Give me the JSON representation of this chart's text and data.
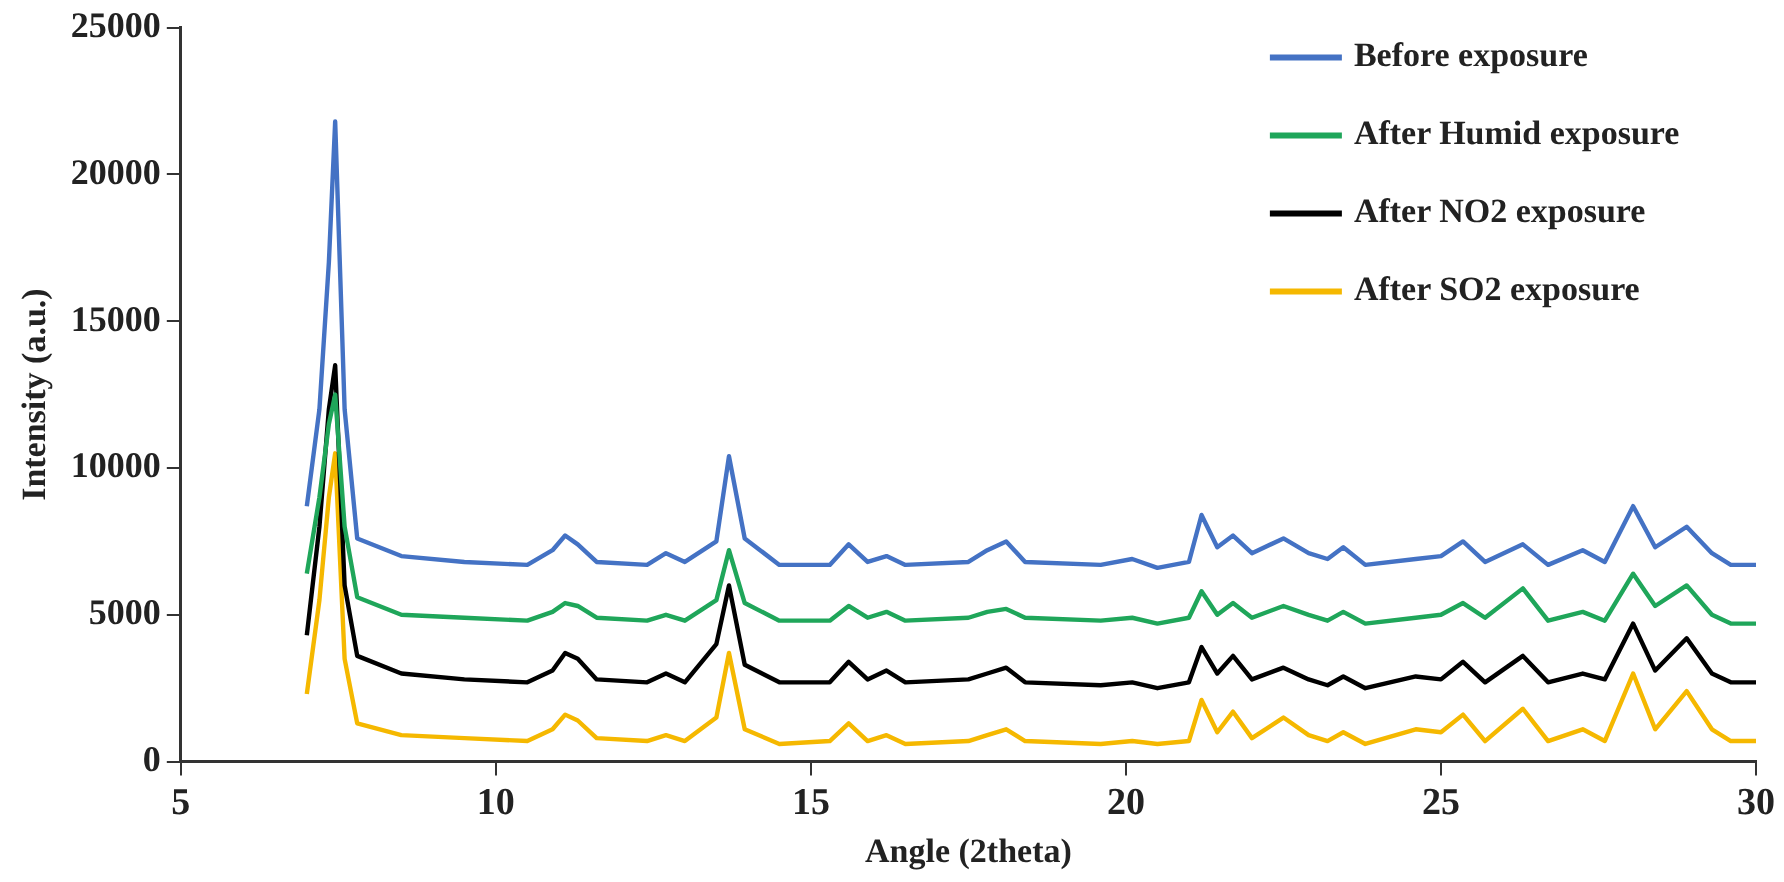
{
  "chart_data": {
    "type": "line",
    "xlabel": "Angle (2theta)",
    "ylabel": "Intensity (a.u.)",
    "x": [
      7.0,
      7.2,
      7.35,
      7.45,
      7.6,
      7.8,
      8.5,
      9.5,
      10.5,
      10.9,
      11.1,
      11.3,
      11.6,
      12.4,
      12.7,
      13.0,
      13.5,
      13.7,
      13.95,
      14.5,
      15.3,
      15.6,
      15.9,
      16.2,
      16.5,
      17.5,
      17.8,
      18.1,
      18.4,
      19.6,
      20.1,
      20.5,
      21.0,
      21.2,
      21.45,
      21.7,
      22.0,
      22.5,
      22.9,
      23.2,
      23.45,
      23.8,
      24.6,
      25.0,
      25.35,
      25.7,
      26.3,
      26.7,
      27.25,
      27.6,
      28.05,
      28.4,
      28.9,
      29.3,
      29.6,
      30.0
    ],
    "series": [
      {
        "name": "Before exposure",
        "color": "#4472c4",
        "values": [
          8700,
          12000,
          17000,
          21800,
          12000,
          7600,
          7000,
          6800,
          6700,
          7200,
          7700,
          7400,
          6800,
          6700,
          7100,
          6800,
          7500,
          10400,
          7600,
          6700,
          6700,
          7400,
          6800,
          7000,
          6700,
          6800,
          7200,
          7500,
          6800,
          6700,
          6900,
          6600,
          6800,
          8400,
          7300,
          7700,
          7100,
          7600,
          7100,
          6900,
          7300,
          6700,
          6900,
          7000,
          7500,
          6800,
          7400,
          6700,
          7200,
          6800,
          8700,
          7300,
          8000,
          7100,
          6700,
          6700
        ]
      },
      {
        "name": "After Humid exposure",
        "color": "#1fa65a",
        "values": [
          6400,
          9000,
          11500,
          12500,
          8000,
          5600,
          5000,
          4900,
          4800,
          5100,
          5400,
          5300,
          4900,
          4800,
          5000,
          4800,
          5500,
          7200,
          5400,
          4800,
          4800,
          5300,
          4900,
          5100,
          4800,
          4900,
          5100,
          5200,
          4900,
          4800,
          4900,
          4700,
          4900,
          5800,
          5000,
          5400,
          4900,
          5300,
          5000,
          4800,
          5100,
          4700,
          4900,
          5000,
          5400,
          4900,
          5900,
          4800,
          5100,
          4800,
          6400,
          5300,
          6000,
          5000,
          4700,
          4700
        ]
      },
      {
        "name": "After NO2 exposure",
        "color": "#000000",
        "values": [
          4300,
          8000,
          12000,
          13500,
          6000,
          3600,
          3000,
          2800,
          2700,
          3100,
          3700,
          3500,
          2800,
          2700,
          3000,
          2700,
          4000,
          6000,
          3300,
          2700,
          2700,
          3400,
          2800,
          3100,
          2700,
          2800,
          3000,
          3200,
          2700,
          2600,
          2700,
          2500,
          2700,
          3900,
          3000,
          3600,
          2800,
          3200,
          2800,
          2600,
          2900,
          2500,
          2900,
          2800,
          3400,
          2700,
          3600,
          2700,
          3000,
          2800,
          4700,
          3100,
          4200,
          3000,
          2700,
          2700
        ]
      },
      {
        "name": "After SO2 exposure",
        "color": "#f5b800",
        "values": [
          2300,
          5500,
          9000,
          10500,
          3500,
          1300,
          900,
          800,
          700,
          1100,
          1600,
          1400,
          800,
          700,
          900,
          700,
          1500,
          3700,
          1100,
          600,
          700,
          1300,
          700,
          900,
          600,
          700,
          900,
          1100,
          700,
          600,
          700,
          600,
          700,
          2100,
          1000,
          1700,
          800,
          1500,
          900,
          700,
          1000,
          600,
          1100,
          1000,
          1600,
          700,
          1800,
          700,
          1100,
          700,
          3000,
          1100,
          2400,
          1100,
          700,
          700
        ]
      }
    ],
    "xlim": [
      5,
      30
    ],
    "xticks": [
      5,
      10,
      15,
      20,
      25,
      30
    ],
    "ylim": [
      0,
      25000
    ],
    "yticks": [
      0,
      5000,
      10000,
      15000,
      20000,
      25000
    ],
    "grid": false,
    "legend": "top right",
    "marker": "none",
    "line_style": "solid"
  }
}
